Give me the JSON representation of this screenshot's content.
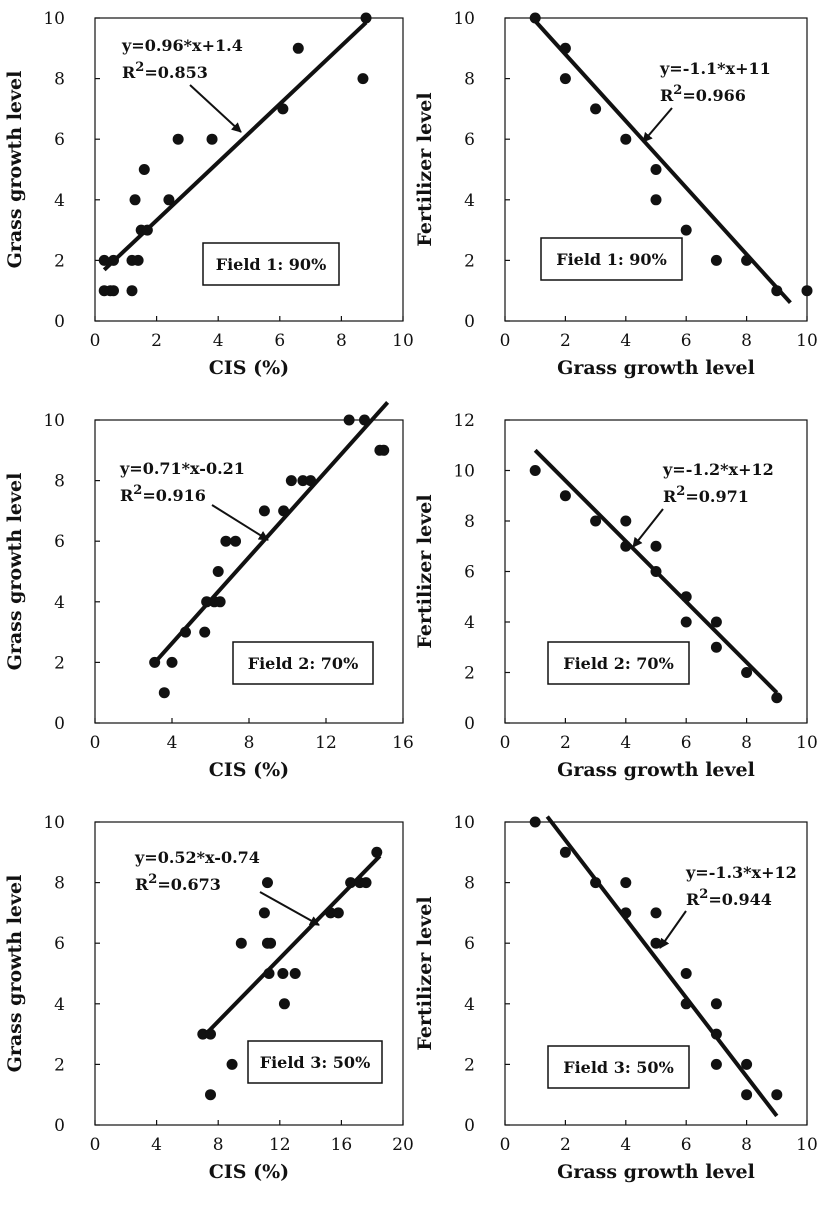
{
  "chart_data": [
    {
      "type": "scatter",
      "xlabel": "CIS (%)",
      "ylabel": "Grass growth level",
      "xlim": [
        0,
        10
      ],
      "ylim": [
        0,
        10
      ],
      "xticks": [
        "0",
        "2",
        "4",
        "6",
        "8",
        "10"
      ],
      "yticks": [
        "0",
        "2",
        "4",
        "6",
        "8",
        "10"
      ],
      "points": [
        [
          0.3,
          1
        ],
        [
          0.3,
          2
        ],
        [
          0.5,
          1
        ],
        [
          0.6,
          1
        ],
        [
          0.6,
          2
        ],
        [
          1.2,
          1
        ],
        [
          1.2,
          2
        ],
        [
          1.3,
          4
        ],
        [
          1.4,
          2
        ],
        [
          1.5,
          3
        ],
        [
          1.6,
          5
        ],
        [
          1.7,
          3
        ],
        [
          2.4,
          4
        ],
        [
          2.7,
          6
        ],
        [
          3.8,
          6
        ],
        [
          6.1,
          7
        ],
        [
          6.6,
          9
        ],
        [
          8.7,
          8
        ],
        [
          8.8,
          10
        ]
      ],
      "fit": {
        "slope": 0.96,
        "intercept": 1.4,
        "x_range": [
          0.3,
          8.8
        ]
      },
      "equation": "y=0.96*x+1.4",
      "r2_label": "R",
      "r2_value": "=0.853",
      "box_label": "Field 1: 90%"
    },
    {
      "type": "scatter",
      "xlabel": "Grass growth level",
      "ylabel": "Fertilizer level",
      "xlim": [
        0,
        10
      ],
      "ylim": [
        0,
        10
      ],
      "xticks": [
        "0",
        "2",
        "4",
        "6",
        "8",
        "10"
      ],
      "yticks": [
        "0",
        "2",
        "4",
        "6",
        "8",
        "10"
      ],
      "points": [
        [
          1,
          10
        ],
        [
          2,
          9
        ],
        [
          2,
          8
        ],
        [
          3,
          7
        ],
        [
          4,
          6
        ],
        [
          5,
          5
        ],
        [
          5,
          4
        ],
        [
          6,
          3
        ],
        [
          7,
          2
        ],
        [
          8,
          2
        ],
        [
          9,
          1
        ],
        [
          10,
          1
        ]
      ],
      "fit": {
        "slope": -1.1,
        "intercept": 11,
        "x_range": [
          1,
          9.45
        ]
      },
      "equation": "y=-1.1*x+11",
      "r2_label": "R",
      "r2_value": "=0.966",
      "box_label": "Field 1: 90%"
    },
    {
      "type": "scatter",
      "xlabel": "CIS (%)",
      "ylabel": "Grass growth level",
      "xlim": [
        0,
        16
      ],
      "ylim": [
        0,
        10
      ],
      "xticks": [
        "0",
        "4",
        "8",
        "12",
        "16"
      ],
      "yticks": [
        "0",
        "2",
        "4",
        "6",
        "8",
        "10"
      ],
      "points": [
        [
          3.1,
          2
        ],
        [
          3.6,
          1
        ],
        [
          4,
          2
        ],
        [
          4.7,
          3
        ],
        [
          5.7,
          3
        ],
        [
          5.8,
          4
        ],
        [
          6.2,
          4
        ],
        [
          6.5,
          4
        ],
        [
          6.4,
          5
        ],
        [
          6.8,
          6
        ],
        [
          7.3,
          6
        ],
        [
          8.8,
          7
        ],
        [
          9.8,
          7
        ],
        [
          10.2,
          8
        ],
        [
          10.8,
          8
        ],
        [
          11.2,
          8
        ],
        [
          13.2,
          10
        ],
        [
          14,
          10
        ],
        [
          14.8,
          9
        ],
        [
          15,
          9
        ]
      ],
      "fit": {
        "slope": 0.71,
        "intercept": -0.21,
        "x_range": [
          3.0,
          15.2
        ]
      },
      "equation": "y=0.71*x-0.21",
      "r2_label": "R",
      "r2_value": "=0.916",
      "box_label": "Field 2: 70%"
    },
    {
      "type": "scatter",
      "xlabel": "Grass growth level",
      "ylabel": "Fertilizer level",
      "xlim": [
        0,
        10
      ],
      "ylim": [
        0,
        12
      ],
      "xticks": [
        "0",
        "2",
        "4",
        "6",
        "8",
        "10"
      ],
      "yticks": [
        "0",
        "2",
        "4",
        "6",
        "8",
        "10",
        "12"
      ],
      "points": [
        [
          1,
          10
        ],
        [
          2,
          9
        ],
        [
          3,
          8
        ],
        [
          4,
          8
        ],
        [
          4,
          7
        ],
        [
          5,
          7
        ],
        [
          5,
          6
        ],
        [
          6,
          5
        ],
        [
          6,
          4
        ],
        [
          7,
          4
        ],
        [
          7,
          3
        ],
        [
          8,
          2
        ],
        [
          9,
          1
        ]
      ],
      "fit": {
        "slope": -1.2,
        "intercept": 12,
        "x_range": [
          1,
          9
        ]
      },
      "equation": "y=-1.2*x+12",
      "r2_label": "R",
      "r2_value": "=0.971",
      "box_label": "Field 2: 70%"
    },
    {
      "type": "scatter",
      "xlabel": "CIS (%)",
      "ylabel": "Grass growth level",
      "xlim": [
        0,
        20
      ],
      "ylim": [
        0,
        10
      ],
      "xticks": [
        "0",
        "4",
        "8",
        "12",
        "16",
        "20"
      ],
      "yticks": [
        "0",
        "2",
        "4",
        "6",
        "8",
        "10"
      ],
      "points": [
        [
          7,
          3
        ],
        [
          7.5,
          3
        ],
        [
          7.5,
          1
        ],
        [
          8.9,
          2
        ],
        [
          9.5,
          6
        ],
        [
          11,
          7
        ],
        [
          11.2,
          8
        ],
        [
          11.2,
          6
        ],
        [
          11.4,
          6
        ],
        [
          11.3,
          5
        ],
        [
          12.2,
          5
        ],
        [
          12.3,
          4
        ],
        [
          13,
          5
        ],
        [
          15.3,
          7
        ],
        [
          15.8,
          7
        ],
        [
          16.6,
          8
        ],
        [
          17.2,
          8
        ],
        [
          17.6,
          8
        ],
        [
          18.3,
          9
        ]
      ],
      "fit": {
        "slope": 0.52,
        "intercept": -0.74,
        "x_range": [
          7.2,
          18.5
        ]
      },
      "equation": "y=0.52*x-0.74",
      "r2_label": "R",
      "r2_value": "=0.673",
      "box_label": "Field 3: 50%"
    },
    {
      "type": "scatter",
      "xlabel": "Grass growth level",
      "ylabel": "Fertilizer level",
      "xlim": [
        0,
        10
      ],
      "ylim": [
        0,
        10
      ],
      "xticks": [
        "0",
        "2",
        "4",
        "6",
        "8",
        "10"
      ],
      "yticks": [
        "0",
        "2",
        "4",
        "6",
        "8",
        "10"
      ],
      "points": [
        [
          1,
          10
        ],
        [
          2,
          9
        ],
        [
          3,
          8
        ],
        [
          4,
          8
        ],
        [
          4,
          7
        ],
        [
          5,
          7
        ],
        [
          5,
          6
        ],
        [
          6,
          5
        ],
        [
          6,
          4
        ],
        [
          7,
          4
        ],
        [
          7,
          3
        ],
        [
          7,
          2
        ],
        [
          8,
          2
        ],
        [
          8,
          1
        ],
        [
          9,
          1
        ]
      ],
      "fit": {
        "slope": -1.3,
        "intercept": 12,
        "x_range": [
          1.4,
          9
        ]
      },
      "equation": "y=-1.3*x+12",
      "r2_label": "R",
      "r2_value": "=0.944",
      "box_label": "Field 3: 50%"
    }
  ]
}
